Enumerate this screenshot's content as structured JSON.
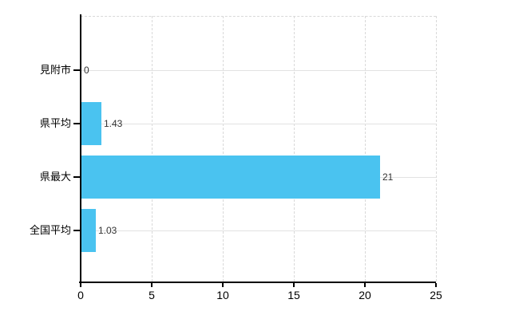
{
  "chart_data": {
    "type": "bar",
    "orientation": "horizontal",
    "title": "",
    "xlabel": "",
    "ylabel": "",
    "categories": [
      "見附市",
      "県平均",
      "県最大",
      "全国平均"
    ],
    "values": [
      0,
      1.43,
      21,
      1.03
    ],
    "value_labels": [
      "0",
      "1.43",
      "21",
      "1.03"
    ],
    "xlim": [
      0,
      25
    ],
    "x_ticks": [
      0,
      5,
      10,
      15,
      20,
      25
    ],
    "x_tick_labels": [
      "0",
      "5",
      "10",
      "15",
      "20",
      "25"
    ],
    "grid": true,
    "legend": "none",
    "bar_color": "#4AC3F0",
    "axis_color": "#000000",
    "gridline_color": "#d9d9d9",
    "value_label_color": "#333333"
  }
}
